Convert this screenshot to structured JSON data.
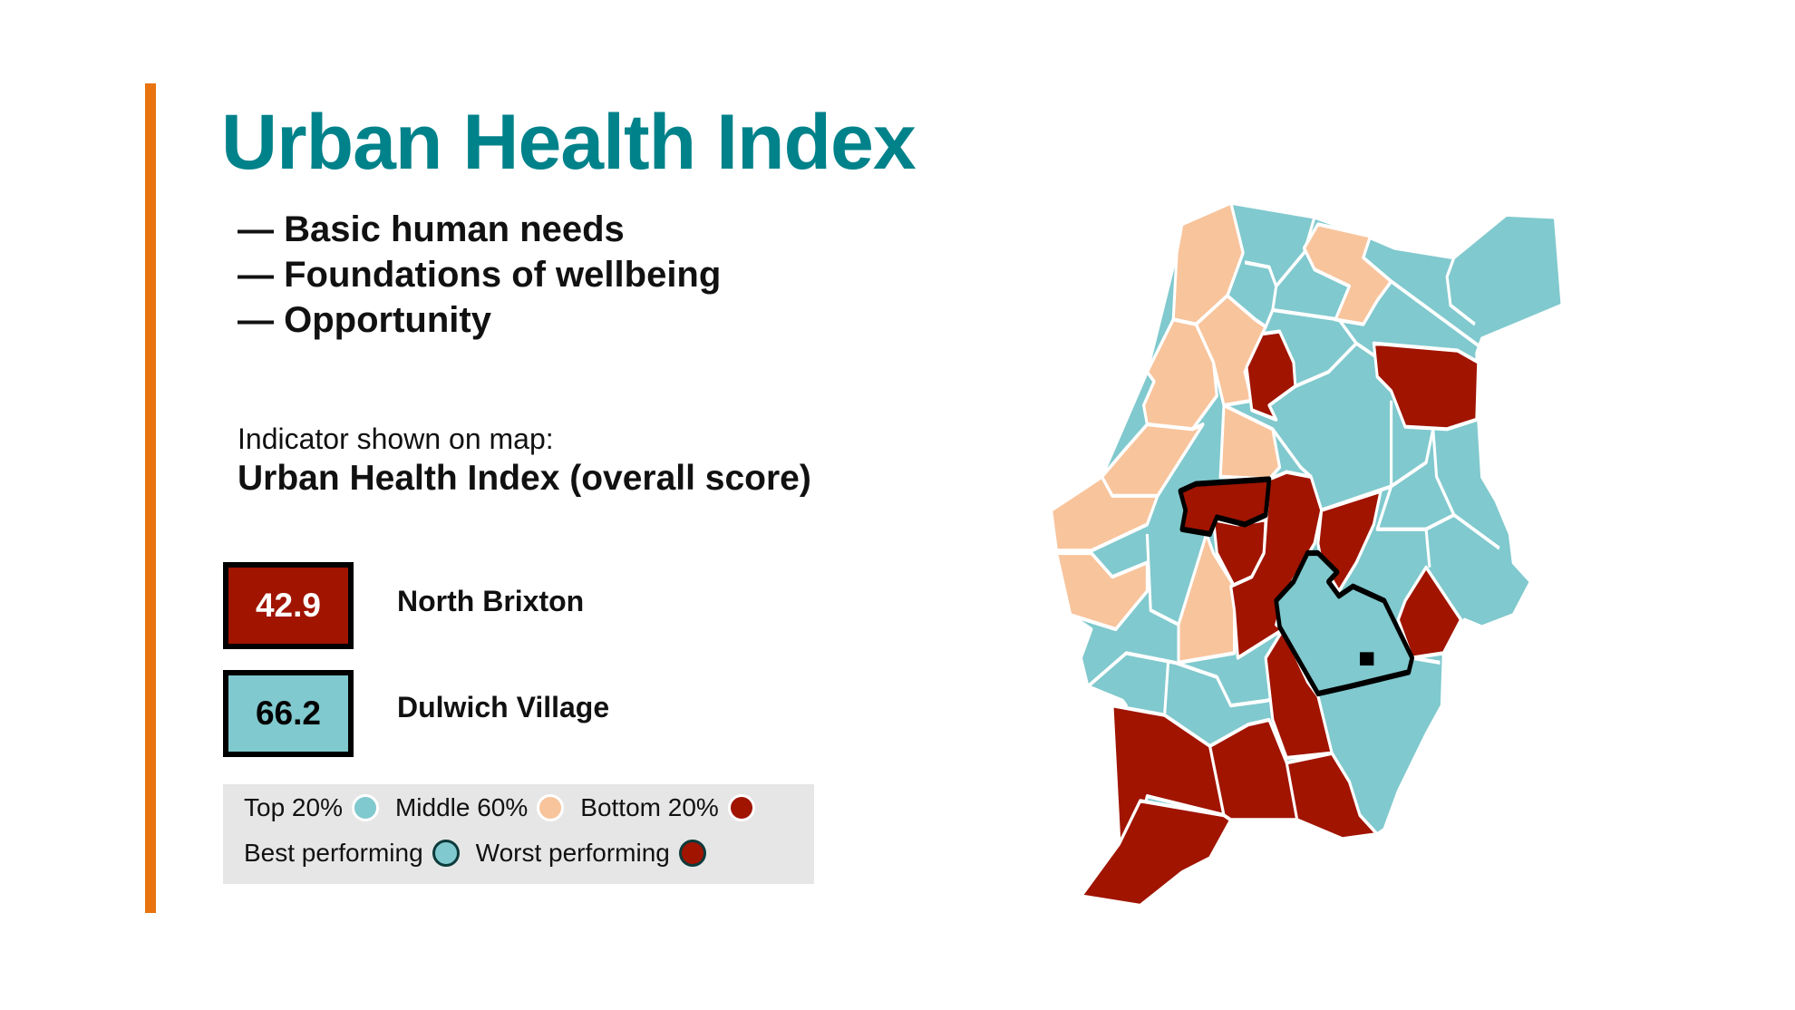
{
  "title": "Urban Health Index",
  "bullets": [
    "— Basic human needs",
    "— Foundations of wellbeing",
    "— Opportunity"
  ],
  "indicator": {
    "label": "Indicator shown on map:",
    "value": "Urban Health Index (overall score)"
  },
  "highlights": [
    {
      "score": "42.9",
      "area": "North Brixton"
    },
    {
      "score": "66.2",
      "area": "Dulwich Village"
    }
  ],
  "legend": {
    "top": "Top 20%",
    "middle": "Middle 60%",
    "bottom": "Bottom 20%",
    "best": "Best performing",
    "worst": "Worst performing"
  },
  "colors": {
    "accent": "#E8730F",
    "title": "#00828A",
    "top": "#80C9CE",
    "middle": "#F8C49C",
    "bottom": "#A01400",
    "legend_bg": "#E6E6E6"
  }
}
